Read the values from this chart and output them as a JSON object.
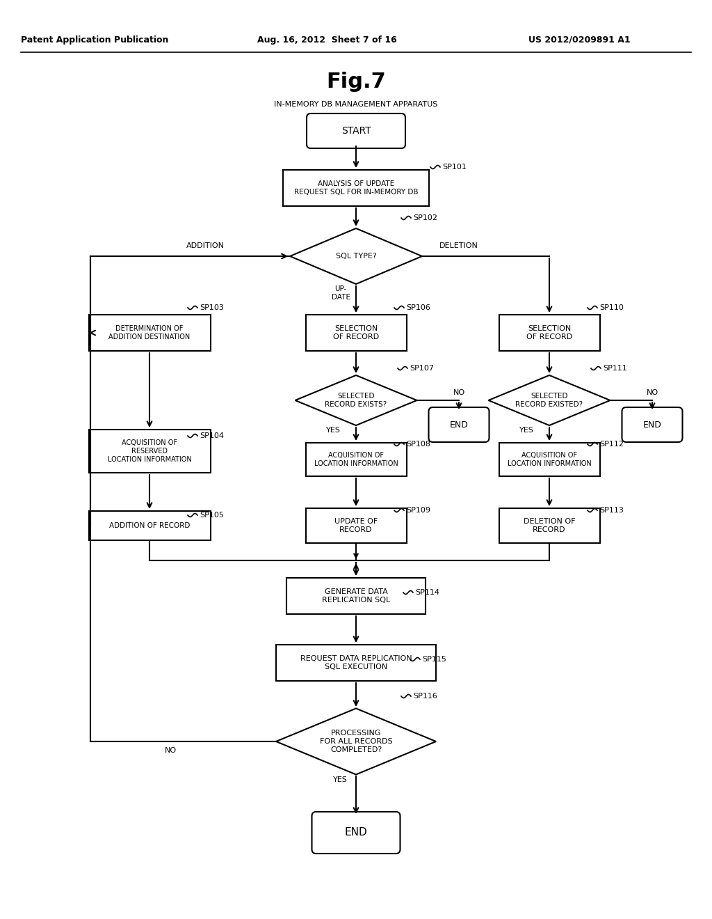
{
  "title": "Fig.7",
  "header_left": "Patent Application Publication",
  "header_mid": "Aug. 16, 2012  Sheet 7 of 16",
  "header_right": "US 2012/0209891 A1",
  "apparatus_label": "IN-MEMORY DB MANAGEMENT APPARATUS",
  "bg_color": "#ffffff",
  "line_color": "#000000"
}
